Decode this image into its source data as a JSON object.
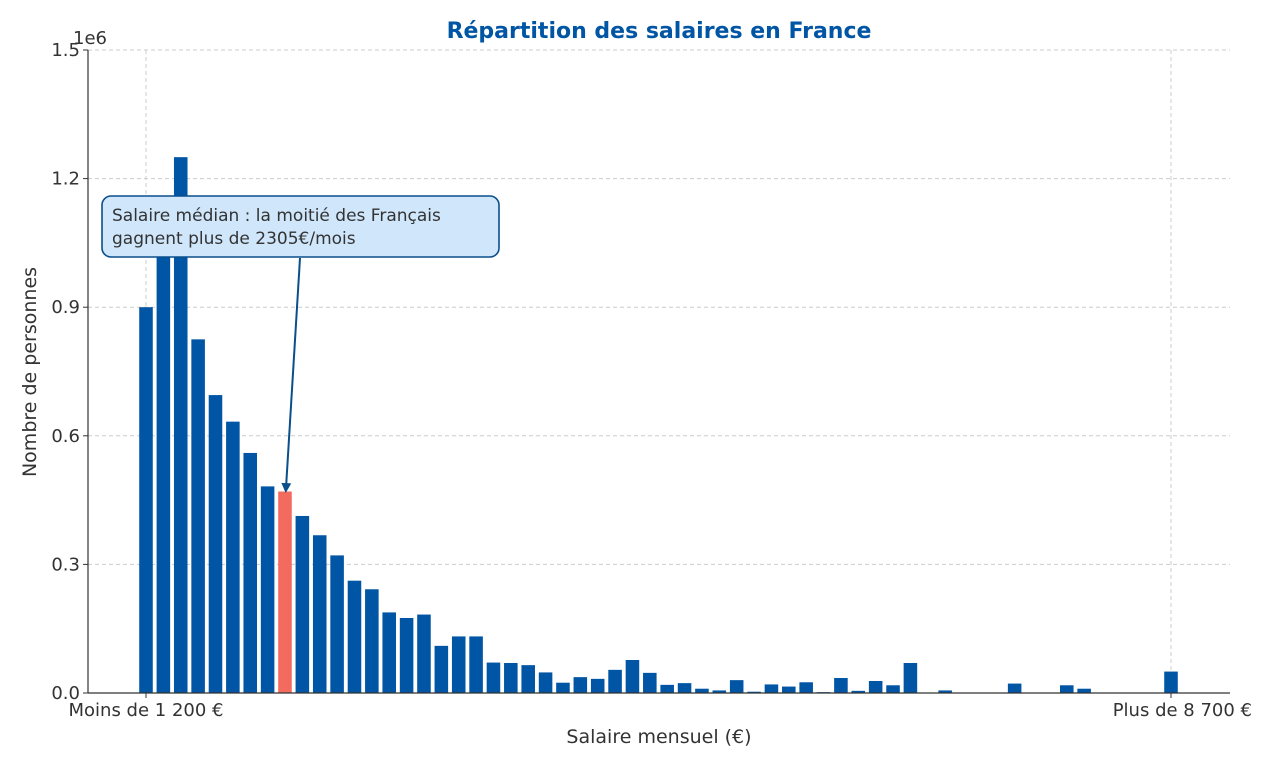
{
  "chart_data": {
    "type": "bar",
    "title": "Répartition des salaires en France",
    "xlabel": "Salaire mensuel (€)",
    "ylabel": "Nombre de personnes",
    "y_exponent_label": "1e6",
    "ylim": [
      0,
      1500000
    ],
    "y_ticks": [
      0,
      300000,
      600000,
      900000,
      1200000,
      1500000
    ],
    "y_tick_labels": [
      "0.0",
      "0.3",
      "0.6",
      "0.9",
      "1.2",
      "1.5"
    ],
    "x_tick_labels": [
      "Moins de 1 200 €",
      "Plus de 8 700 €"
    ],
    "grid": true,
    "highlight_index": 8,
    "values": [
      900000,
      1060000,
      1250000,
      825000,
      695000,
      633000,
      560000,
      482000,
      470000,
      413000,
      368000,
      321000,
      262000,
      242000,
      188000,
      175000,
      183000,
      110000,
      132000,
      132000,
      71000,
      70000,
      65000,
      48000,
      24000,
      37000,
      33000,
      54000,
      77000,
      47000,
      19000,
      23000,
      10000,
      6000,
      30000,
      3000,
      20000,
      15000,
      25000,
      2000,
      35000,
      5000,
      28000,
      18000,
      70000,
      1000,
      6000,
      1000,
      1000,
      1000,
      22000,
      1000,
      1000,
      18000,
      10000,
      1000,
      1000,
      1000,
      1000,
      50000
    ],
    "colors": {
      "bar": "#0055a4",
      "highlight": "#f26b5e",
      "title": "#0055a4",
      "annotation_fill": "#cfe6fb",
      "annotation_border": "#0a4f8a",
      "arrow": "#0a4f8a"
    },
    "annotation": {
      "lines": [
        "Salaire médian : la moitié des Français",
        "gagnent plus de 2305€/mois"
      ]
    }
  }
}
